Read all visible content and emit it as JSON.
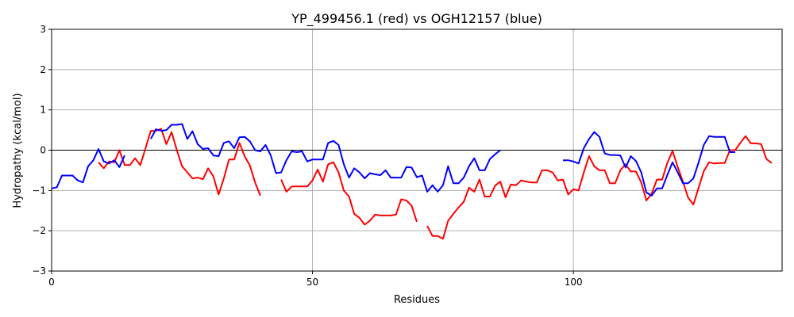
{
  "chart_data": {
    "type": "line",
    "title": "YP_499456.1 (red) vs OGH12157 (blue)",
    "xlabel": "Residues",
    "ylabel": "Hydropathy (kcal/mol)",
    "xlim": [
      0,
      140
    ],
    "ylim": [
      -3,
      3
    ],
    "xticks": [
      0,
      50,
      100
    ],
    "yticks": [
      -3,
      -2,
      -1,
      0,
      1,
      2,
      3
    ],
    "grid": true,
    "zero_line": true,
    "series": [
      {
        "color": "#ff0000",
        "segments": [
          [
            [
              9,
              -0.3
            ],
            [
              10,
              -0.45
            ],
            [
              11,
              -0.28
            ],
            [
              12,
              -0.3
            ],
            [
              13,
              0.0
            ],
            [
              14,
              -0.37
            ],
            [
              15,
              -0.37
            ],
            [
              16,
              -0.2
            ],
            [
              17,
              -0.37
            ],
            [
              18,
              0.05
            ],
            [
              19,
              0.48
            ],
            [
              20,
              0.48
            ],
            [
              21,
              0.53
            ],
            [
              22,
              0.15
            ],
            [
              23,
              0.45
            ],
            [
              24,
              0.0
            ],
            [
              25,
              -0.4
            ],
            [
              26,
              -0.55
            ],
            [
              27,
              -0.7
            ],
            [
              28,
              -0.68
            ],
            [
              29,
              -0.72
            ],
            [
              30,
              -0.45
            ],
            [
              31,
              -0.65
            ],
            [
              32,
              -1.1
            ],
            [
              33,
              -0.7
            ],
            [
              34,
              -0.23
            ],
            [
              35,
              -0.23
            ],
            [
              36,
              0.18
            ],
            [
              37,
              -0.15
            ],
            [
              38,
              -0.38
            ],
            [
              39,
              -0.8
            ],
            [
              40,
              -1.13
            ]
          ],
          [
            [
              44,
              -0.73
            ],
            [
              45,
              -1.03
            ],
            [
              46,
              -0.9
            ],
            [
              47,
              -0.9
            ],
            [
              48,
              -0.9
            ],
            [
              49,
              -0.9
            ],
            [
              50,
              -0.75
            ],
            [
              51,
              -0.48
            ],
            [
              52,
              -0.78
            ],
            [
              53,
              -0.35
            ],
            [
              54,
              -0.3
            ],
            [
              55,
              -0.55
            ],
            [
              56,
              -1.0
            ],
            [
              57,
              -1.15
            ],
            [
              58,
              -1.58
            ],
            [
              59,
              -1.68
            ],
            [
              60,
              -1.85
            ],
            [
              61,
              -1.75
            ],
            [
              62,
              -1.6
            ],
            [
              63,
              -1.62
            ],
            [
              64,
              -1.62
            ],
            [
              65,
              -1.62
            ],
            [
              66,
              -1.6
            ],
            [
              67,
              -1.22
            ],
            [
              68,
              -1.25
            ],
            [
              69,
              -1.38
            ],
            [
              70,
              -1.78
            ]
          ],
          [
            [
              72,
              -1.88
            ],
            [
              73,
              -2.13
            ],
            [
              74,
              -2.13
            ],
            [
              75,
              -2.2
            ],
            [
              76,
              -1.75
            ],
            [
              77,
              -1.58
            ],
            [
              78,
              -1.42
            ],
            [
              79,
              -1.28
            ],
            [
              80,
              -0.93
            ],
            [
              81,
              -1.03
            ],
            [
              82,
              -0.73
            ],
            [
              83,
              -1.15
            ],
            [
              84,
              -1.15
            ],
            [
              85,
              -0.88
            ],
            [
              86,
              -0.78
            ],
            [
              87,
              -1.17
            ],
            [
              88,
              -0.85
            ],
            [
              89,
              -0.87
            ],
            [
              90,
              -0.75
            ],
            [
              91,
              -0.78
            ],
            [
              92,
              -0.8
            ],
            [
              93,
              -0.8
            ],
            [
              94,
              -0.5
            ],
            [
              95,
              -0.5
            ],
            [
              96,
              -0.55
            ],
            [
              97,
              -0.75
            ],
            [
              98,
              -0.73
            ],
            [
              99,
              -1.1
            ],
            [
              100,
              -0.97
            ],
            [
              101,
              -1.0
            ],
            [
              102,
              -0.55
            ],
            [
              103,
              -0.15
            ],
            [
              104,
              -0.4
            ],
            [
              105,
              -0.5
            ],
            [
              106,
              -0.5
            ],
            [
              107,
              -0.82
            ],
            [
              108,
              -0.82
            ],
            [
              109,
              -0.5
            ],
            [
              110,
              -0.35
            ],
            [
              111,
              -0.53
            ],
            [
              112,
              -0.53
            ],
            [
              113,
              -0.8
            ],
            [
              114,
              -1.25
            ],
            [
              115,
              -1.08
            ],
            [
              116,
              -0.73
            ],
            [
              117,
              -0.73
            ],
            [
              118,
              -0.32
            ],
            [
              119,
              -0.02
            ],
            [
              120,
              -0.42
            ],
            [
              121,
              -0.78
            ],
            [
              122,
              -1.18
            ],
            [
              123,
              -1.35
            ],
            [
              124,
              -0.93
            ],
            [
              125,
              -0.52
            ],
            [
              126,
              -0.3
            ],
            [
              127,
              -0.33
            ],
            [
              128,
              -0.32
            ],
            [
              129,
              -0.32
            ],
            [
              130,
              0.0
            ],
            [
              131,
              0.0
            ],
            [
              132,
              0.18
            ],
            [
              133,
              0.35
            ],
            [
              134,
              0.17
            ],
            [
              135,
              0.17
            ],
            [
              136,
              0.15
            ],
            [
              137,
              -0.22
            ],
            [
              138,
              -0.32
            ]
          ]
        ]
      },
      {
        "color": "#0000ff",
        "segments": [
          [
            [
              0,
              -0.95
            ],
            [
              1,
              -0.92
            ],
            [
              2,
              -0.63
            ],
            [
              3,
              -0.63
            ],
            [
              4,
              -0.63
            ],
            [
              5,
              -0.75
            ],
            [
              6,
              -0.8
            ],
            [
              7,
              -0.4
            ],
            [
              8,
              -0.25
            ],
            [
              9,
              0.03
            ],
            [
              10,
              -0.28
            ],
            [
              11,
              -0.33
            ],
            [
              12,
              -0.25
            ],
            [
              13,
              -0.42
            ],
            [
              14,
              -0.13
            ]
          ],
          [
            [
              19,
              0.28
            ],
            [
              20,
              0.52
            ],
            [
              21,
              0.48
            ],
            [
              22,
              0.5
            ],
            [
              23,
              0.63
            ],
            [
              24,
              0.63
            ],
            [
              25,
              0.65
            ],
            [
              26,
              0.28
            ],
            [
              27,
              0.47
            ],
            [
              28,
              0.15
            ],
            [
              29,
              0.03
            ],
            [
              30,
              0.05
            ],
            [
              31,
              -0.13
            ],
            [
              32,
              -0.15
            ],
            [
              33,
              0.18
            ],
            [
              34,
              0.22
            ],
            [
              35,
              0.05
            ],
            [
              36,
              0.32
            ],
            [
              37,
              0.33
            ],
            [
              38,
              0.22
            ],
            [
              39,
              0.0
            ],
            [
              40,
              -0.03
            ],
            [
              41,
              0.13
            ],
            [
              42,
              -0.13
            ],
            [
              43,
              -0.57
            ],
            [
              44,
              -0.55
            ],
            [
              45,
              -0.25
            ],
            [
              46,
              -0.03
            ],
            [
              47,
              -0.05
            ],
            [
              48,
              -0.03
            ],
            [
              49,
              -0.28
            ],
            [
              50,
              -0.23
            ],
            [
              51,
              -0.23
            ],
            [
              52,
              -0.23
            ],
            [
              53,
              0.18
            ],
            [
              54,
              0.23
            ],
            [
              55,
              0.13
            ],
            [
              56,
              -0.35
            ],
            [
              57,
              -0.68
            ],
            [
              58,
              -0.45
            ],
            [
              59,
              -0.55
            ],
            [
              60,
              -0.7
            ],
            [
              61,
              -0.57
            ],
            [
              62,
              -0.6
            ],
            [
              63,
              -0.62
            ],
            [
              64,
              -0.5
            ],
            [
              65,
              -0.68
            ],
            [
              66,
              -0.68
            ],
            [
              67,
              -0.68
            ],
            [
              68,
              -0.42
            ],
            [
              69,
              -0.43
            ],
            [
              70,
              -0.67
            ],
            [
              71,
              -0.63
            ],
            [
              72,
              -1.03
            ],
            [
              73,
              -0.87
            ],
            [
              74,
              -1.03
            ],
            [
              75,
              -0.87
            ],
            [
              76,
              -0.4
            ],
            [
              77,
              -0.82
            ],
            [
              78,
              -0.82
            ],
            [
              79,
              -0.68
            ],
            [
              80,
              -0.4
            ],
            [
              81,
              -0.2
            ],
            [
              82,
              -0.5
            ],
            [
              83,
              -0.5
            ],
            [
              84,
              -0.22
            ],
            [
              85,
              -0.1
            ],
            [
              86,
              0.0
            ]
          ],
          [
            [
              98,
              -0.25
            ],
            [
              99,
              -0.25
            ],
            [
              100,
              -0.28
            ],
            [
              101,
              -0.33
            ],
            [
              102,
              0.05
            ],
            [
              103,
              0.28
            ],
            [
              104,
              0.45
            ],
            [
              105,
              0.33
            ],
            [
              106,
              -0.08
            ],
            [
              107,
              -0.12
            ],
            [
              108,
              -0.12
            ],
            [
              109,
              -0.13
            ],
            [
              110,
              -0.43
            ],
            [
              111,
              -0.15
            ],
            [
              112,
              -0.27
            ],
            [
              113,
              -0.55
            ],
            [
              114,
              -1.05
            ],
            [
              115,
              -1.13
            ],
            [
              116,
              -0.95
            ],
            [
              117,
              -0.95
            ],
            [
              118,
              -0.62
            ],
            [
              119,
              -0.3
            ],
            [
              120,
              -0.55
            ],
            [
              121,
              -0.82
            ],
            [
              122,
              -0.82
            ],
            [
              123,
              -0.7
            ],
            [
              124,
              -0.3
            ],
            [
              125,
              0.13
            ],
            [
              126,
              0.35
            ],
            [
              127,
              0.33
            ],
            [
              128,
              0.33
            ],
            [
              129,
              0.33
            ],
            [
              130,
              -0.05
            ],
            [
              131,
              -0.05
            ]
          ]
        ]
      }
    ]
  }
}
